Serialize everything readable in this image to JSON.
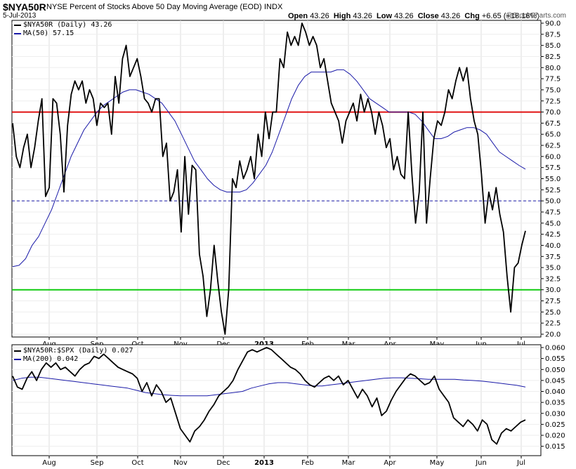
{
  "header": {
    "symbol": "$NYA50R",
    "full_name": "NYSE Percent of Stocks Above 50 Day Moving Average (EOD)",
    "exchange": "INDX",
    "date": "5-Jul-2013",
    "open_label": "Open",
    "open": "43.26",
    "high_label": "High",
    "high": "43.26",
    "low_label": "Low",
    "low": "43.26",
    "close_label": "Close",
    "close": "43.26",
    "chg_label": "Chg",
    "chg": "+6.65 (+18.16%)",
    "watermark": "@StockCharts.com"
  },
  "chart_data": [
    {
      "type": "line",
      "panel": "main",
      "legend": [
        {
          "text": "$NYA50R (Daily) 43.26",
          "color": "#000000"
        },
        {
          "text": "MA(50) 57.15",
          "color": "#1a1aa8"
        }
      ],
      "ylim": [
        20,
        90
      ],
      "y_ticks": [
        "90.0",
        "87.5",
        "85.0",
        "82.5",
        "80.0",
        "77.5",
        "75.0",
        "72.5",
        "70.0",
        "67.5",
        "65.0",
        "62.5",
        "60.0",
        "57.5",
        "55.0",
        "52.5",
        "50.0",
        "47.5",
        "45.0",
        "42.5",
        "40.0",
        "37.5",
        "35.0",
        "32.5",
        "30.0",
        "27.5",
        "25.0",
        "22.5",
        "20.0"
      ],
      "x_ticks": [
        "Aug",
        "Sep",
        "Oct",
        "Nov",
        "Dec",
        "2013",
        "Feb",
        "Mar",
        "Apr",
        "May",
        "Jun",
        "Jul"
      ],
      "reference_lines": [
        {
          "value": 70,
          "color": "#e01010",
          "style": "solid"
        },
        {
          "value": 50,
          "color": "#1a1aa8",
          "style": "dashed"
        },
        {
          "value": 30,
          "color": "#10cc10",
          "style": "solid"
        }
      ],
      "series": [
        {
          "name": "$NYA50R",
          "color": "#000000",
          "values": [
            67.5,
            60,
            57.5,
            62,
            65,
            57.5,
            62,
            68,
            73,
            51,
            53,
            73,
            72,
            65,
            52,
            67,
            74,
            77,
            75,
            77,
            72,
            75,
            73,
            67,
            72,
            71,
            72,
            65,
            78,
            72,
            82,
            85,
            78,
            80,
            82,
            78,
            73,
            72,
            70,
            73,
            73,
            60,
            63,
            50,
            52,
            57,
            43,
            60,
            47,
            58,
            57,
            38,
            33,
            24,
            30,
            40,
            32,
            25,
            20,
            30,
            55,
            53,
            59,
            55,
            57,
            60,
            55,
            65,
            60,
            70,
            64,
            70,
            70,
            82,
            80,
            88,
            85,
            87,
            85,
            90,
            88,
            85,
            87,
            85,
            80,
            82,
            77,
            72,
            70,
            68,
            63,
            68,
            70,
            72,
            68,
            74,
            70,
            73,
            70,
            65,
            70,
            67,
            62,
            64,
            57,
            60,
            56,
            55,
            70,
            56,
            45,
            52,
            70,
            45,
            55,
            64,
            68,
            67,
            70,
            75,
            73,
            77,
            80,
            77,
            80,
            73,
            68,
            65,
            56,
            45,
            52,
            48,
            53,
            47,
            43,
            33,
            25,
            35,
            36,
            40,
            43.26
          ]
        },
        {
          "name": "MA(50)",
          "color": "#1a1aa8",
          "values": [
            35.2,
            35.5,
            37,
            40,
            42,
            45,
            48,
            52,
            56,
            60,
            63,
            66,
            68,
            70,
            71.5,
            72.5,
            73.5,
            74.5,
            75,
            75,
            74.5,
            74,
            73,
            72,
            70,
            68,
            65,
            62,
            59,
            57,
            55,
            53.5,
            52.5,
            52,
            52,
            52,
            52.5,
            54,
            56,
            58,
            61,
            65,
            69,
            73,
            76,
            78,
            79,
            79,
            79,
            79,
            79.5,
            79.5,
            78.5,
            77,
            75,
            73,
            72,
            71,
            70,
            70,
            70,
            70,
            69.5,
            68,
            66,
            64,
            64,
            64.5,
            65.5,
            66,
            66.5,
            66.5,
            66,
            65,
            63,
            61,
            60,
            59,
            58,
            57.15
          ]
        }
      ]
    },
    {
      "type": "line",
      "panel": "ratio",
      "legend": [
        {
          "text": "$NYA50R:$SPX (Daily) 0.027",
          "color": "#000000"
        },
        {
          "text": "MA(200) 0.042",
          "color": "#1a1aa8"
        }
      ],
      "ylim": [
        0.012,
        0.06
      ],
      "y_ticks": [
        "0.060",
        "0.055",
        "0.050",
        "0.045",
        "0.040",
        "0.035",
        "0.030",
        "0.025",
        "0.020",
        "0.015"
      ],
      "x_ticks": [
        "Aug",
        "Sep",
        "Oct",
        "Nov",
        "Dec",
        "2013",
        "Feb",
        "Mar",
        "Apr",
        "May",
        "Jun",
        "Jul"
      ],
      "series": [
        {
          "name": "$NYA50R:$SPX",
          "color": "#000000",
          "values": [
            0.047,
            0.042,
            0.041,
            0.046,
            0.049,
            0.045,
            0.05,
            0.053,
            0.051,
            0.053,
            0.05,
            0.051,
            0.049,
            0.047,
            0.05,
            0.052,
            0.053,
            0.056,
            0.055,
            0.057,
            0.055,
            0.053,
            0.051,
            0.05,
            0.049,
            0.048,
            0.046,
            0.04,
            0.044,
            0.038,
            0.043,
            0.04,
            0.035,
            0.037,
            0.03,
            0.023,
            0.02,
            0.017,
            0.022,
            0.024,
            0.027,
            0.031,
            0.034,
            0.038,
            0.04,
            0.042,
            0.045,
            0.05,
            0.054,
            0.058,
            0.059,
            0.058,
            0.059,
            0.06,
            0.059,
            0.057,
            0.055,
            0.053,
            0.051,
            0.05,
            0.048,
            0.045,
            0.043,
            0.042,
            0.044,
            0.046,
            0.047,
            0.045,
            0.047,
            0.043,
            0.045,
            0.041,
            0.037,
            0.041,
            0.038,
            0.033,
            0.037,
            0.029,
            0.031,
            0.036,
            0.04,
            0.043,
            0.046,
            0.048,
            0.047,
            0.045,
            0.043,
            0.044,
            0.047,
            0.041,
            0.038,
            0.035,
            0.028,
            0.026,
            0.024,
            0.027,
            0.025,
            0.022,
            0.027,
            0.025,
            0.018,
            0.016,
            0.021,
            0.023,
            0.022,
            0.024,
            0.026,
            0.027
          ]
        },
        {
          "name": "MA(200)",
          "color": "#1a1aa8",
          "values": [
            0.045,
            0.046,
            0.0465,
            0.0465,
            0.046,
            0.0455,
            0.045,
            0.0445,
            0.044,
            0.0435,
            0.043,
            0.0425,
            0.042,
            0.0415,
            0.0405,
            0.0395,
            0.039,
            0.0385,
            0.0382,
            0.038,
            0.038,
            0.038,
            0.038,
            0.0385,
            0.039,
            0.0395,
            0.04,
            0.0415,
            0.0425,
            0.0435,
            0.044,
            0.044,
            0.0435,
            0.043,
            0.0425,
            0.0425,
            0.043,
            0.0435,
            0.044,
            0.0445,
            0.045,
            0.0455,
            0.046,
            0.0462,
            0.0462,
            0.046,
            0.0458,
            0.0455,
            0.0455,
            0.0455,
            0.0455,
            0.0452,
            0.045,
            0.0447,
            0.0443,
            0.0438,
            0.0433,
            0.0428,
            0.042
          ]
        }
      ]
    }
  ]
}
